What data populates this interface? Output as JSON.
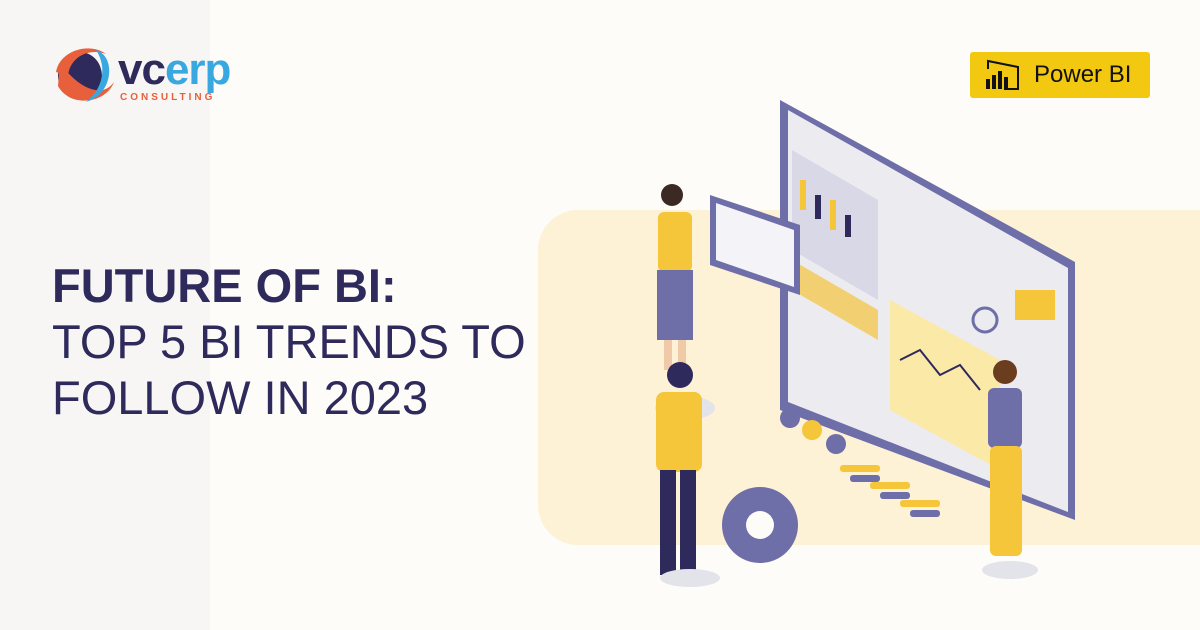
{
  "logo": {
    "brand_part1": "vc",
    "brand_part2": "erp",
    "tagline": "CONSULTING"
  },
  "badge": {
    "label": "Power BI",
    "icon": "power-bi-bars-icon",
    "color": "#f2c811"
  },
  "headline": {
    "line1": "FUTURE OF BI:",
    "line2": "TOP 5 BI TRENDS TO",
    "line3": "FOLLOW IN 2023"
  },
  "colors": {
    "navy": "#2e2a5b",
    "accent_blue": "#3aa8e0",
    "accent_orange": "#e8603b",
    "yellow": "#f5c53a",
    "purple": "#6e6ea8"
  }
}
